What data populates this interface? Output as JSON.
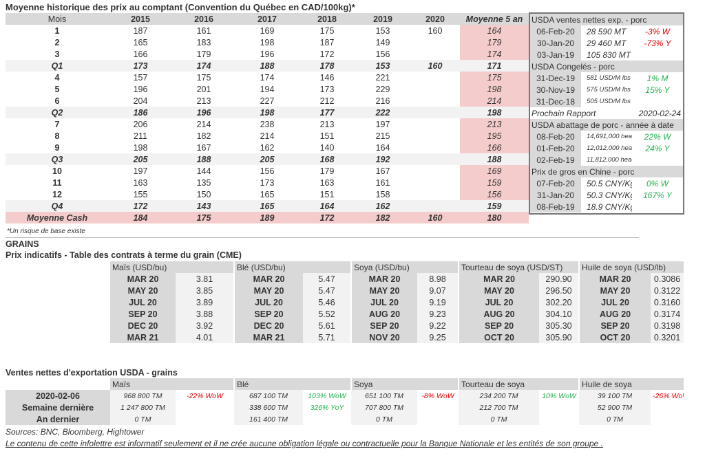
{
  "main": {
    "title": "Moyenne historique des prix au comptant (Convention du Québec en CAD/100kg)*",
    "headers": [
      "Mois",
      "2015",
      "2016",
      "2017",
      "2018",
      "2019",
      "2020",
      "Moyenne 5 an"
    ],
    "rows": [
      {
        "type": "m",
        "cells": [
          "1",
          "187",
          "161",
          "169",
          "175",
          "153",
          "160",
          "164"
        ]
      },
      {
        "type": "m",
        "cells": [
          "2",
          "165",
          "183",
          "198",
          "187",
          "149",
          "",
          "179"
        ]
      },
      {
        "type": "m",
        "cells": [
          "3",
          "166",
          "179",
          "196",
          "172",
          "156",
          "",
          "174"
        ]
      },
      {
        "type": "q",
        "cells": [
          "Q1",
          "173",
          "174",
          "188",
          "178",
          "153",
          "160",
          "171"
        ]
      },
      {
        "type": "m",
        "cells": [
          "4",
          "157",
          "175",
          "174",
          "146",
          "221",
          "",
          "175"
        ]
      },
      {
        "type": "m",
        "cells": [
          "5",
          "196",
          "201",
          "194",
          "173",
          "229",
          "",
          "198"
        ]
      },
      {
        "type": "m",
        "cells": [
          "6",
          "204",
          "213",
          "227",
          "212",
          "216",
          "",
          "214"
        ]
      },
      {
        "type": "q",
        "cells": [
          "Q2",
          "186",
          "196",
          "198",
          "177",
          "222",
          "",
          "198"
        ]
      },
      {
        "type": "m",
        "cells": [
          "7",
          "206",
          "214",
          "238",
          "213",
          "197",
          "",
          "213"
        ]
      },
      {
        "type": "m",
        "cells": [
          "8",
          "211",
          "182",
          "214",
          "151",
          "215",
          "",
          "195"
        ]
      },
      {
        "type": "m",
        "cells": [
          "9",
          "198",
          "167",
          "162",
          "140",
          "164",
          "",
          "166"
        ]
      },
      {
        "type": "q",
        "cells": [
          "Q3",
          "205",
          "188",
          "205",
          "168",
          "192",
          "",
          "188"
        ]
      },
      {
        "type": "m",
        "cells": [
          "10",
          "197",
          "144",
          "156",
          "179",
          "167",
          "",
          "169"
        ]
      },
      {
        "type": "m",
        "cells": [
          "11",
          "163",
          "135",
          "173",
          "163",
          "161",
          "",
          "159"
        ]
      },
      {
        "type": "m",
        "cells": [
          "12",
          "155",
          "150",
          "165",
          "151",
          "158",
          "",
          "156"
        ]
      },
      {
        "type": "q",
        "cells": [
          "Q4",
          "172",
          "143",
          "165",
          "164",
          "162",
          "",
          "159"
        ]
      },
      {
        "type": "cash",
        "cells": [
          "Moyenne Cash",
          "184",
          "175",
          "189",
          "172",
          "182",
          "160",
          "180"
        ]
      }
    ],
    "footnote": "*Un risque de base existe"
  },
  "box": {
    "sections": [
      {
        "title": "USDA ventes nettes exp. - porc",
        "small": false,
        "rows": [
          [
            "06-Feb-20",
            "28 590  MT",
            "-3% W",
            "red"
          ],
          [
            "30-Jan-20",
            "29 460  MT",
            "-73% Y",
            "red"
          ],
          [
            "03-Jan-19",
            "105 830  MT",
            "",
            ""
          ]
        ]
      },
      {
        "title": "USDA Congelés - porc",
        "small": true,
        "rows": [
          [
            "31-Dec-19",
            "581 USD/M lbs",
            "1% M",
            "green"
          ],
          [
            "30-Nov-19",
            "575 USD/M lbs",
            "15% Y",
            "green"
          ],
          [
            "31-Dec-18",
            "505 USD/M lbs",
            "",
            ""
          ]
        ]
      },
      {
        "title": "USDA abattage de porc - année à date",
        "small": true,
        "rows": [
          [
            "08-Feb-20",
            "14,691,000 heads",
            "22% W",
            "green"
          ],
          [
            "01-Feb-20",
            "12,012,000 heads",
            "24% Y",
            "green"
          ],
          [
            "02-Feb-19",
            "11,812,000 heads",
            "",
            ""
          ]
        ]
      },
      {
        "title": "Prix de gros en Chine - porc",
        "small": false,
        "rows": [
          [
            "07-Feb-20",
            "50.5 CNY/Kg",
            "0% W",
            "green"
          ],
          [
            "31-Jan-20",
            "50.3 CNY/Kg",
            "167% Y",
            "green"
          ],
          [
            "08-Feb-19",
            "18.9 CNY/Kg",
            "",
            ""
          ]
        ]
      }
    ],
    "next_report_label": "Prochain Rapport",
    "next_report_date": "2020-02-24"
  },
  "grains": {
    "section": "GRAINS",
    "title": "Prix indicatifs - Table des contrats à terme du grain (CME)",
    "columns": [
      {
        "name": "Maïs (USD/bu)",
        "rows": [
          [
            "MAR 20",
            "3.81"
          ],
          [
            "MAY 20",
            "3.85"
          ],
          [
            "JUL 20",
            "3.89"
          ],
          [
            "SEP 20",
            "3.88"
          ],
          [
            "DEC 20",
            "3.92"
          ],
          [
            "MAR 21",
            "4.01"
          ]
        ]
      },
      {
        "name": "Blé (USD/bu)",
        "rows": [
          [
            "MAR 20",
            "5.47"
          ],
          [
            "MAY 20",
            "5.47"
          ],
          [
            "JUL 20",
            "5.46"
          ],
          [
            "SEP 20",
            "5.52"
          ],
          [
            "DEC 20",
            "5.61"
          ],
          [
            "MAR 21",
            "5.71"
          ]
        ]
      },
      {
        "name": "Soya (USD/bu)",
        "rows": [
          [
            "MAR 20",
            "8.98"
          ],
          [
            "MAY 20",
            "9.07"
          ],
          [
            "JUL 20",
            "9.19"
          ],
          [
            "AUG 20",
            "9.23"
          ],
          [
            "SEP 20",
            "9.22"
          ],
          [
            "NOV 20",
            "9.25"
          ]
        ]
      },
      {
        "name": "Tourteau de soya (USD/ST)",
        "rows": [
          [
            "MAR 20",
            "290.90"
          ],
          [
            "MAY 20",
            "296.50"
          ],
          [
            "JUL 20",
            "302.20"
          ],
          [
            "AUG 20",
            "304.10"
          ],
          [
            "SEP 20",
            "305.30"
          ],
          [
            "OCT 20",
            "305.90"
          ]
        ]
      },
      {
        "name": "Huile de soya (USD/lb)",
        "rows": [
          [
            "MAR 20",
            "0.3086"
          ],
          [
            "MAY 20",
            "0.3122"
          ],
          [
            "JUL 20",
            "0.3160"
          ],
          [
            "AUG 20",
            "0.3174"
          ],
          [
            "SEP 20",
            "0.3198"
          ],
          [
            "OCT 20",
            "0.3201"
          ]
        ]
      }
    ]
  },
  "exports": {
    "title": "Ventes nettes d'exportation USDA - grains",
    "row_labels": [
      "2020-02-06",
      "Semaine dernière",
      "An dernier"
    ],
    "columns": [
      {
        "name": "Maïs",
        "rows": [
          [
            "968 800 TM",
            "-22% WoW",
            "red"
          ],
          [
            "1 247 800 TM",
            "",
            ""
          ],
          [
            "0 TM",
            "",
            ""
          ]
        ]
      },
      {
        "name": "Blé",
        "rows": [
          [
            "687 100 TM",
            "103% WoW",
            "green"
          ],
          [
            "338 600 TM",
            "326% YoY",
            "green"
          ],
          [
            "161 400 TM",
            "",
            ""
          ]
        ]
      },
      {
        "name": "Soya",
        "rows": [
          [
            "651 100 TM",
            "-8% WoW",
            "red"
          ],
          [
            "707 800 TM",
            "",
            ""
          ],
          [
            "0 TM",
            "",
            ""
          ]
        ]
      },
      {
        "name": "Tourteau de soya",
        "rows": [
          [
            "234 200 TM",
            "10% WoW",
            "green"
          ],
          [
            "212 700 TM",
            "",
            ""
          ],
          [
            "0 TM",
            "",
            ""
          ]
        ]
      },
      {
        "name": "Huile de soya",
        "rows": [
          [
            "39 100 TM",
            "-26% WoW",
            "red"
          ],
          [
            "52 900 TM",
            "",
            ""
          ],
          [
            "0 TM",
            "",
            ""
          ]
        ]
      }
    ]
  },
  "footer": {
    "sources": "Sources: BNC, Bloomberg, Hightower",
    "disclaimer": "Le contenu de cette infolettre est informatif seulement et il ne crée aucune obligation légale ou contractuelle pour la Banque Nationale et les entités de son groupe ."
  },
  "colors": {
    "pink": "#f4cccc",
    "header_gray": "#d9d9d9",
    "red": "#e00000",
    "green": "#22b14c"
  }
}
